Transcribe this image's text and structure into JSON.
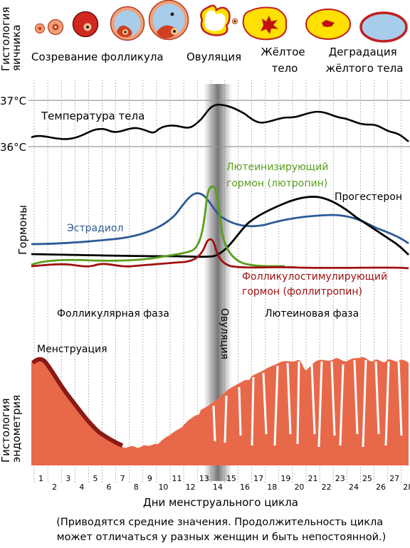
{
  "section_labels": {
    "ovary_histology": [
      "Гистология",
      "яичника"
    ],
    "hormones": "Гормоны",
    "endometrium_histology": [
      "Гистология",
      "эндометрия"
    ]
  },
  "ovary_stages": {
    "follicle_maturation": "Созревание фолликула",
    "ovulation": "Овуляция",
    "corpus_luteum": [
      "Жёлтое",
      "тело"
    ],
    "corpus_luteum_degradation": [
      "Деградация",
      "жёлтого тела"
    ]
  },
  "temperature": {
    "label": "Температура тела",
    "high_tick": "37°C",
    "low_tick": "36°C"
  },
  "hormones": {
    "lh": {
      "label": [
        "Лютеинизирующий",
        "гормон (лютропин)"
      ],
      "color": "#5a9e1e"
    },
    "progesterone": {
      "label": "Прогестерон",
      "color": "#000000"
    },
    "estradiol": {
      "label": "Эстрадиол",
      "color": "#2d5a96"
    },
    "fsh": {
      "label": [
        "Фолликулостимулирующий",
        "гормон (фоллитропин)"
      ],
      "color": "#a01010"
    }
  },
  "phases": {
    "follicular": "Фолликулярная фаза",
    "ovulation": "Овуляция",
    "luteal": "Лютеиновая фаза",
    "menstruation": "Менструация"
  },
  "axis": {
    "days": [
      "1",
      "2",
      "3",
      "4",
      "5",
      "6",
      "7",
      "8",
      "9",
      "10",
      "11",
      "12",
      "13",
      "14",
      "15",
      "16",
      "17",
      "18",
      "19",
      "20",
      "21",
      "22",
      "23",
      "24",
      "25",
      "26",
      "27",
      "28"
    ],
    "title": "Дни менструального цикла"
  },
  "footnote": [
    "(Приводятся средние значения. Продолжительность цикла",
    "может отличаться у разных женщин и быть непостоянной.)"
  ],
  "colors": {
    "endometrium": "#e8694a",
    "endometrium_dark": "#8a1a14",
    "ovulation_band": "#808080"
  }
}
